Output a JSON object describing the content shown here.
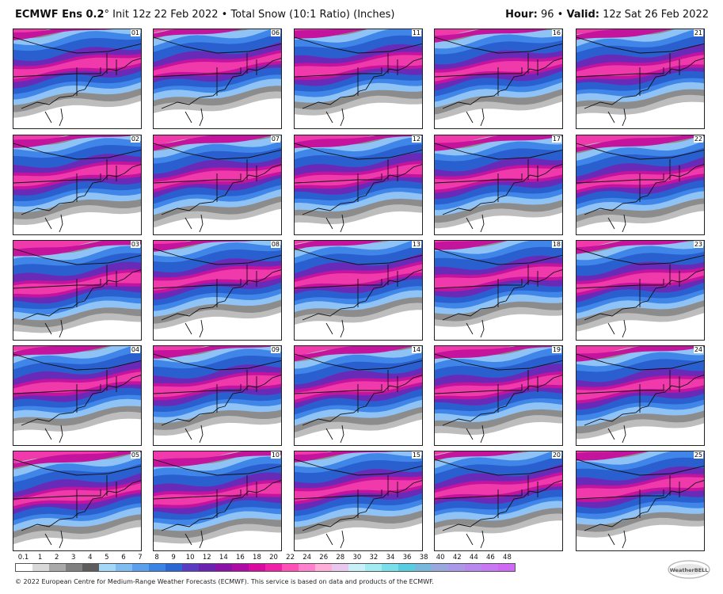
{
  "header": {
    "brand": "ECMWF Ens 0.2",
    "degree": "°",
    "init": "Init 12z 22 Feb 2022",
    "bullet": "•",
    "product": "Total Snow (10:1 Ratio) (Inches)",
    "hour_label": "Hour:",
    "hour_value": "96",
    "valid_label": "Valid:",
    "valid_value": "12z Sat 26 Feb 2022"
  },
  "members": [
    "01",
    "06",
    "11",
    "16",
    "21",
    "02",
    "07",
    "12",
    "17",
    "22",
    "03",
    "08",
    "13",
    "18",
    "23",
    "04",
    "09",
    "14",
    "19",
    "24",
    "05",
    "10",
    "15",
    "20",
    "25"
  ],
  "legend": {
    "ticks": [
      "0.1",
      "1",
      "2",
      "3",
      "4",
      "5",
      "6",
      "7",
      "8",
      "9",
      "10",
      "12",
      "14",
      "16",
      "18",
      "20",
      "22",
      "24",
      "26",
      "28",
      "30",
      "32",
      "34",
      "36",
      "38",
      "40",
      "42",
      "44",
      "46",
      "48"
    ],
    "colors": [
      "#ffffff",
      "#d9d9d9",
      "#a9a9a9",
      "#808080",
      "#5d5d5d",
      "#a4d8f8",
      "#7fbcf2",
      "#5aa0ec",
      "#3b84e6",
      "#2a66d4",
      "#5a3cc4",
      "#6a22b0",
      "#8a12a8",
      "#b00aa6",
      "#d80aa0",
      "#f020a8",
      "#ff50b8",
      "#ff80cc",
      "#ffaed8",
      "#e8c8ee",
      "#c8f0f8",
      "#a0ecf2",
      "#7adfea",
      "#58cce0",
      "#78b8dc",
      "#9aa8e0",
      "#aa98e8",
      "#b888ee",
      "#c878f2",
      "#d068f6"
    ]
  },
  "footer": {
    "text": "© 2022 European Centre for Medium-Range Weather Forecasts (ECMWF). This service is based on data and products of the ECMWF."
  },
  "logo": {
    "text": "WeatherBELL"
  },
  "colors": {
    "gray_light": "#bdbdbd",
    "gray_mid": "#8c8c8c",
    "gray_dark": "#5a5a5a",
    "blue_light": "#8fc3f5",
    "blue": "#3f86e8",
    "blue_dark": "#2a5fd0",
    "purple": "#6a2ab8",
    "magenta": "#c4149e",
    "pink": "#f03aac"
  }
}
